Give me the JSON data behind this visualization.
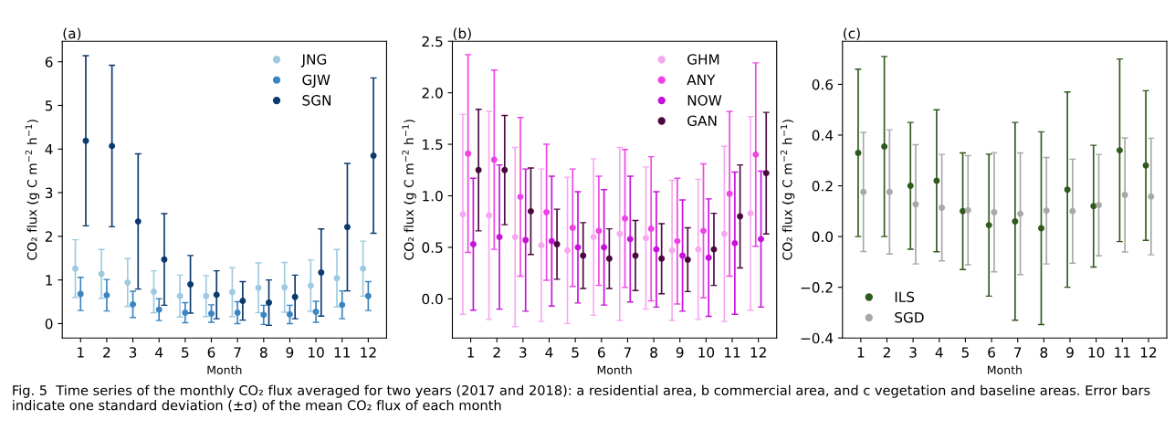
{
  "chart_data": [
    {
      "type": "scatter",
      "title": "(a)",
      "xlabel": "Month",
      "ylabel": "CO₂ flux (g C m$^{−2}$ h$^{−1}$)",
      "categories": [
        "1",
        "2",
        "3",
        "4",
        "5",
        "6",
        "7",
        "8",
        "9",
        "10",
        "11",
        "12"
      ],
      "ylim": [
        -0.33,
        6.47
      ],
      "yticks": [
        0,
        1,
        2,
        3,
        4,
        5,
        6
      ],
      "legend": "top right",
      "marker": "circle",
      "grid": false,
      "series": [
        {
          "name": "JNG",
          "color": "#9ecae1",
          "values": [
            1.26,
            1.14,
            0.94,
            0.73,
            0.63,
            0.63,
            0.72,
            0.82,
            0.83,
            0.87,
            1.04,
            1.26
          ],
          "errors": [
            0.66,
            0.56,
            0.55,
            0.48,
            0.48,
            0.47,
            0.56,
            0.57,
            0.57,
            0.59,
            0.66,
            0.63
          ]
        },
        {
          "name": "GJW",
          "color": "#3a85c2",
          "values": [
            0.68,
            0.65,
            0.44,
            0.32,
            0.25,
            0.23,
            0.25,
            0.2,
            0.21,
            0.27,
            0.43,
            0.63
          ],
          "errors": [
            0.38,
            0.36,
            0.3,
            0.25,
            0.23,
            0.2,
            0.25,
            0.22,
            0.21,
            0.24,
            0.32,
            0.33
          ]
        },
        {
          "name": "SGN",
          "color": "#0b3a6e",
          "values": [
            4.19,
            4.07,
            2.34,
            1.47,
            0.9,
            0.66,
            0.52,
            0.48,
            0.61,
            1.17,
            2.21,
            3.85
          ],
          "errors": [
            1.95,
            1.85,
            1.55,
            1.05,
            0.66,
            0.55,
            0.44,
            0.52,
            0.5,
            1.0,
            1.46,
            1.78
          ]
        }
      ],
      "annotations": [
        "Fig. 5  Time series of the monthly CO₂ flux averaged for two years (2017 and 2018): a residential area, b commercial area, and c vegetation and baseline areas. Error bars indicate one standard deviation (±σ) of the mean CO₂ flux of each month"
      ]
    },
    {
      "type": "scatter",
      "title": "(b)",
      "xlabel": "Month",
      "ylabel": "CO₂ flux (g C m$^{−2}$ h$^{−1}$)",
      "categories": [
        "1",
        "2",
        "3",
        "4",
        "5",
        "6",
        "7",
        "8",
        "9",
        "10",
        "11",
        "12"
      ],
      "ylim": [
        -0.38,
        2.5
      ],
      "yticks": [
        {
          "value": 0,
          "label": "0.0"
        },
        {
          "value": 0.5,
          "label": "0.5"
        },
        {
          "value": 1,
          "label": "1.0"
        },
        {
          "value": 1.5,
          "label": "1.5"
        },
        {
          "value": 2,
          "label": "2.0"
        },
        {
          "value": 2.5,
          "label": "2.5"
        }
      ],
      "legend": "top right",
      "marker": "circle",
      "grid": false,
      "series": [
        {
          "name": "GHM",
          "color": "#f7a8f0",
          "values": [
            0.82,
            0.81,
            0.6,
            0.52,
            0.47,
            0.6,
            0.63,
            0.59,
            0.47,
            0.48,
            0.63,
            0.83
          ],
          "errors": [
            0.97,
            1.01,
            0.87,
            0.74,
            0.71,
            0.76,
            0.84,
            0.69,
            0.68,
            0.68,
            0.85,
            0.94
          ]
        },
        {
          "name": "ANY",
          "color": "#ee44e6",
          "values": [
            1.41,
            1.35,
            0.99,
            0.84,
            0.69,
            0.66,
            0.78,
            0.68,
            0.56,
            0.66,
            1.02,
            1.4
          ],
          "errors": [
            0.96,
            0.87,
            0.77,
            0.66,
            0.57,
            0.53,
            0.67,
            0.7,
            0.61,
            0.65,
            0.8,
            0.89
          ]
        },
        {
          "name": "NOW",
          "color": "#c511d8",
          "values": [
            0.53,
            0.6,
            0.57,
            0.56,
            0.5,
            0.5,
            0.58,
            0.48,
            0.42,
            0.4,
            0.54,
            0.58
          ],
          "errors": [
            0.64,
            0.7,
            0.69,
            0.63,
            0.54,
            0.56,
            0.61,
            0.56,
            0.54,
            0.57,
            0.69,
            0.66
          ]
        },
        {
          "name": "GAN",
          "color": "#4b0a3f",
          "values": [
            1.25,
            1.25,
            0.85,
            0.53,
            0.42,
            0.39,
            0.42,
            0.39,
            0.38,
            0.48,
            0.8,
            1.22
          ],
          "errors": [
            0.59,
            0.53,
            0.42,
            0.34,
            0.32,
            0.29,
            0.34,
            0.34,
            0.31,
            0.35,
            0.5,
            0.59
          ]
        }
      ]
    },
    {
      "type": "scatter",
      "title": "(c)",
      "xlabel": "Month",
      "ylabel": "CO₂ flux (g C m$^{−2}$ h$^{−1}$)",
      "categories": [
        "1",
        "2",
        "3",
        "4",
        "5",
        "6",
        "7",
        "8",
        "9",
        "10",
        "11",
        "12"
      ],
      "ylim": [
        -0.4,
        0.77
      ],
      "yticks": [
        {
          "value": -0.4,
          "label": "−0.4"
        },
        {
          "value": -0.2,
          "label": "−0.2"
        },
        {
          "value": 0,
          "label": "0.0"
        },
        {
          "value": 0.2,
          "label": "0.2"
        },
        {
          "value": 0.4,
          "label": "0.4"
        },
        {
          "value": 0.6,
          "label": "0.6"
        }
      ],
      "legend": "bottom left",
      "marker": "circle",
      "grid": false,
      "series": [
        {
          "name": "ILS",
          "color": "#2e5a1c",
          "values": [
            0.33,
            0.355,
            0.2,
            0.22,
            0.1,
            0.045,
            0.06,
            0.033,
            0.185,
            0.12,
            0.34,
            0.28
          ],
          "errors": [
            0.33,
            0.355,
            0.25,
            0.28,
            0.23,
            0.28,
            0.39,
            0.38,
            0.385,
            0.24,
            0.36,
            0.295
          ]
        },
        {
          "name": "SGD",
          "color": "#a8a8a8",
          "values": [
            0.176,
            0.176,
            0.127,
            0.114,
            0.104,
            0.096,
            0.09,
            0.102,
            0.1,
            0.124,
            0.164,
            0.158
          ],
          "errors": [
            0.235,
            0.245,
            0.235,
            0.21,
            0.215,
            0.235,
            0.24,
            0.21,
            0.205,
            0.2,
            0.225,
            0.23
          ]
        }
      ]
    }
  ]
}
